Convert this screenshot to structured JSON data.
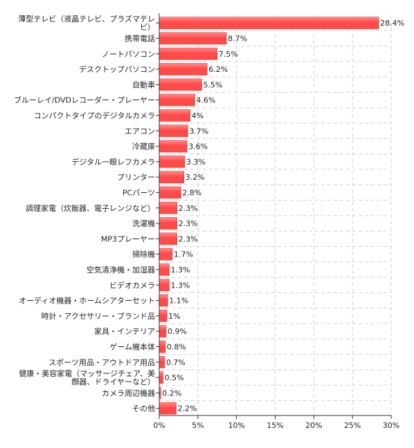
{
  "chart_data": {
    "type": "bar",
    "orientation": "horizontal",
    "categories": [
      [
        "薄型テレビ（液晶テレビ、プラズマテレ",
        "ビ）"
      ],
      [
        "携帯電話"
      ],
      [
        "ノートパソコン"
      ],
      [
        "デスクトップパソコン"
      ],
      [
        "自動車"
      ],
      [
        "ブルーレイ/DVDレコーダー・プレーヤー"
      ],
      [
        "コンパクトタイプのデジタルカメラ"
      ],
      [
        "エアコン"
      ],
      [
        "冷蔵庫"
      ],
      [
        "デジタル一眼レフカメラ"
      ],
      [
        "プリンター"
      ],
      [
        "PCパーツ"
      ],
      [
        "調理家電（炊飯器、電子レンジなど）"
      ],
      [
        "洗濯機"
      ],
      [
        "MP3プレーヤー"
      ],
      [
        "掃除機"
      ],
      [
        "空気清浄機・加湿器"
      ],
      [
        "ビデオカメラ"
      ],
      [
        "オーディオ機器・ホームシアターセット"
      ],
      [
        "時計・アクセサリー・ブランド品"
      ],
      [
        "家具・インテリア"
      ],
      [
        "ゲーム機本体"
      ],
      [
        "スポーツ用品・アウトドア用品"
      ],
      [
        "健康・美容家電（マッサージチェア、美",
        "顔器、ドライヤーなど）"
      ],
      [
        "カメラ周辺機器"
      ],
      [
        "その他"
      ]
    ],
    "values": [
      28.4,
      8.7,
      7.5,
      6.2,
      5.5,
      4.6,
      4,
      3.7,
      3.6,
      3.3,
      3.2,
      2.8,
      2.3,
      2.3,
      2.3,
      1.7,
      1.3,
      1.3,
      1.1,
      1,
      0.9,
      0.8,
      0.7,
      0.5,
      0.2,
      2.2
    ],
    "value_labels": [
      "28.4%",
      "8.7%",
      "7.5%",
      "6.2%",
      "5.5%",
      "4.6%",
      "4%",
      "3.7%",
      "3.6%",
      "3.3%",
      "3.2%",
      "2.8%",
      "2.3%",
      "2.3%",
      "2.3%",
      "1.7%",
      "1.3%",
      "1.3%",
      "1.1%",
      "1%",
      "0.9%",
      "0.8%",
      "0.7%",
      "0.5%",
      "0.2%",
      "2.2%"
    ],
    "xlim": [
      0,
      30
    ],
    "x_ticks": [
      0,
      5,
      10,
      15,
      20,
      25,
      30
    ],
    "x_tick_labels": [
      "0%",
      "5%",
      "10%",
      "15%",
      "20%",
      "25%",
      "30%"
    ],
    "grid": true,
    "bar_color": "#ff4a4a",
    "bar_highlight_color": "#ff8c8c"
  }
}
